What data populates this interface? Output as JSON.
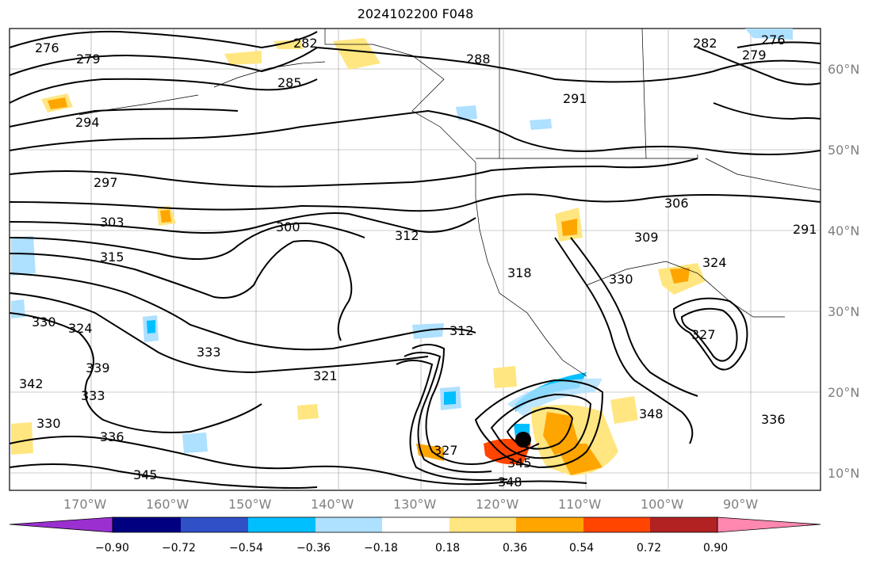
{
  "title": "2024102200 F048",
  "map": {
    "lat_labels": [
      "60°N",
      "50°N",
      "40°N",
      "30°N",
      "20°N",
      "10°N"
    ],
    "lon_labels": [
      "170°W",
      "160°W",
      "150°W",
      "140°W",
      "130°W",
      "120°W",
      "110°W",
      "100°W",
      "90°W"
    ],
    "contour_labels": [
      "276",
      "279",
      "282",
      "285",
      "288",
      "291",
      "291",
      "294",
      "297",
      "300",
      "303",
      "306",
      "309",
      "312",
      "312",
      "315",
      "318",
      "321",
      "324",
      "324",
      "327",
      "327",
      "330",
      "330",
      "330",
      "333",
      "333",
      "336",
      "336",
      "339",
      "342",
      "345",
      "345",
      "348",
      "348",
      "276",
      "279",
      "282"
    ]
  },
  "colorbar": {
    "ticks": [
      "−0.90",
      "−0.72",
      "−0.54",
      "−0.36",
      "−0.18",
      "0.18",
      "0.36",
      "0.54",
      "0.72",
      "0.90"
    ],
    "colors": [
      "#9b30d0",
      "#000080",
      "#3050c8",
      "#00bfff",
      "#aee0ff",
      "#ffffff",
      "#ffe680",
      "#ffa500",
      "#ff4500",
      "#b22222",
      "#ff88b0"
    ]
  }
}
